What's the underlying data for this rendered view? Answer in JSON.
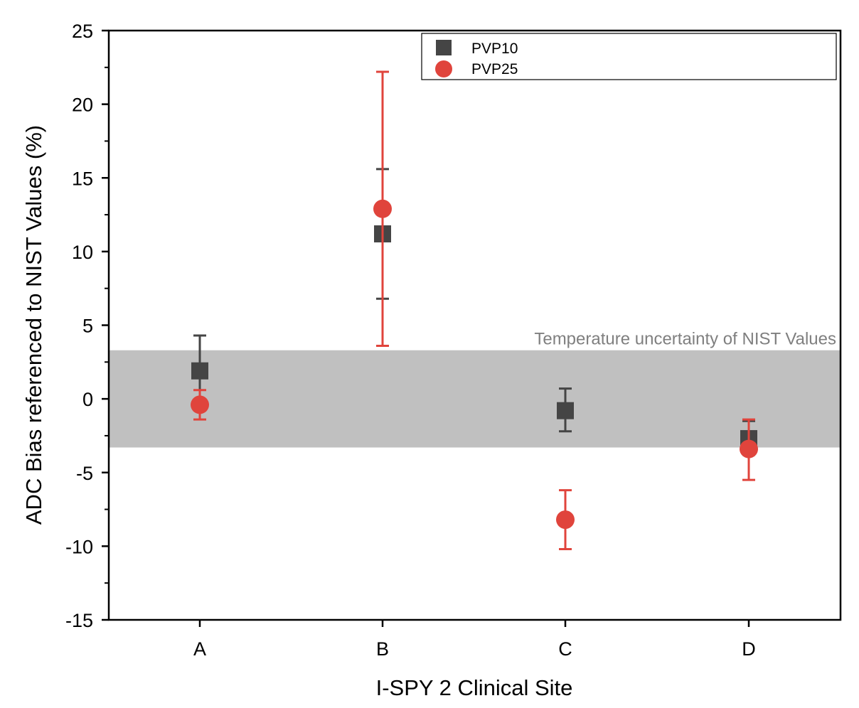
{
  "chart_data": {
    "type": "scatter",
    "title": "",
    "xlabel": "I-SPY 2 Clinical Site",
    "ylabel": "ADC Bias referenced to NIST Values (%)",
    "categories": [
      "A",
      "B",
      "C",
      "D"
    ],
    "ylim": [
      -15,
      25
    ],
    "yticks": [
      -15,
      -10,
      -5,
      0,
      5,
      10,
      15,
      20,
      25
    ],
    "ytick_labels": [
      "-15",
      "-10",
      "-5",
      "0",
      "5",
      "10",
      "15",
      "20",
      "25"
    ],
    "grid": false,
    "legend_position": "top-right",
    "band": {
      "label": "Temperature uncertainty of NIST Values",
      "range": [
        -3.3,
        3.3
      ],
      "color": "#c0c0c0",
      "label_color": "#7f7f7f"
    },
    "series": [
      {
        "name": "PVP10",
        "marker": "square",
        "color": "#454545",
        "values": [
          1.9,
          11.2,
          -0.8,
          -2.7
        ],
        "err_low": [
          -0.5,
          6.8,
          -2.2,
          -3.8
        ],
        "err_high": [
          4.3,
          15.6,
          0.7,
          -1.5
        ]
      },
      {
        "name": "PVP25",
        "marker": "circle",
        "color": "#e0443c",
        "values": [
          -0.4,
          12.9,
          -8.2,
          -3.4
        ],
        "err_low": [
          -1.4,
          3.6,
          -10.2,
          -5.5
        ],
        "err_high": [
          0.6,
          22.2,
          -6.2,
          -1.4
        ]
      }
    ]
  }
}
